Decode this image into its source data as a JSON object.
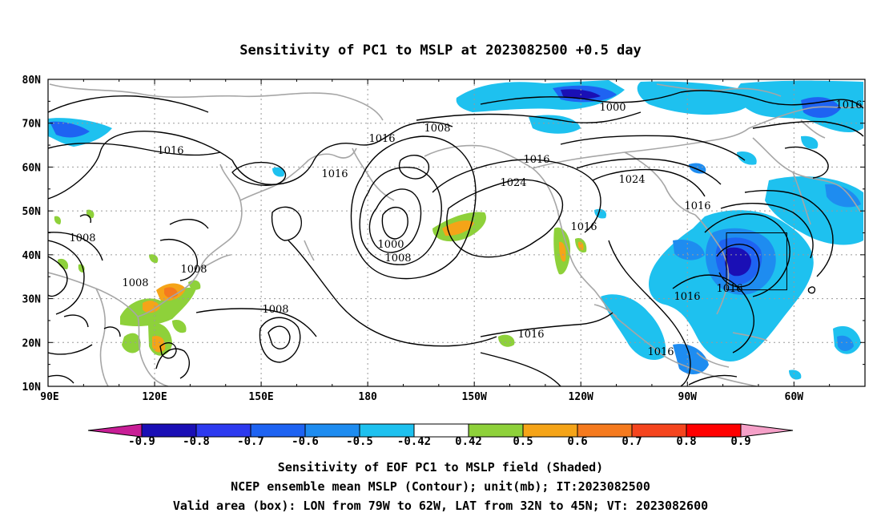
{
  "title": "Sensitivity of PC1 to MSLP at 2023082500 +0.5 day",
  "axes": {
    "x_ticks": [
      "90E",
      "120E",
      "150E",
      "180",
      "150W",
      "120W",
      "90W",
      "60W"
    ],
    "y_ticks": [
      "10N",
      "20N",
      "30N",
      "40N",
      "50N",
      "60N",
      "70N",
      "80N"
    ]
  },
  "colorbar": {
    "labels": [
      "-0.9",
      "-0.8",
      "-0.7",
      "-0.6",
      "-0.5",
      "-0.42",
      "0.42",
      "0.5",
      "0.6",
      "0.7",
      "0.8",
      "0.9"
    ],
    "colors": [
      "#1a0fb5",
      "#2d3aef",
      "#1e63f2",
      "#1e8cf0",
      "#1ec1ef",
      "#ffffff",
      "#8ed13a",
      "#f5a418",
      "#f57a1e",
      "#f5451e",
      "#ff0000"
    ],
    "under_color": "#c81e96",
    "over_color": "#f5a0c8"
  },
  "contour_labels": [
    "1016",
    "1016",
    "1016",
    "1008",
    "1016",
    "1008",
    "1016",
    "1024",
    "1024",
    "1016",
    "1000",
    "1008",
    "1008",
    "1008",
    "1008",
    "1016",
    "1016",
    "1016",
    "1016",
    "1016",
    "1000"
  ],
  "caption": {
    "line1": "Sensitivity of EOF PC1 to MSLP field (Shaded)",
    "line2": "NCEP ensemble mean MSLP (Contour); unit(mb); IT:2023082500",
    "line3": "Valid area (box): LON from 79W to 62W, LAT from 32N to 45N; VT: 2023082600"
  },
  "valid_area": {
    "lon_min": -79,
    "lon_max": -62,
    "lat_min": 32,
    "lat_max": 45
  },
  "map_extent": {
    "lon_min": 90,
    "lon_max": 320,
    "lat_min": 10,
    "lat_max": 80
  }
}
